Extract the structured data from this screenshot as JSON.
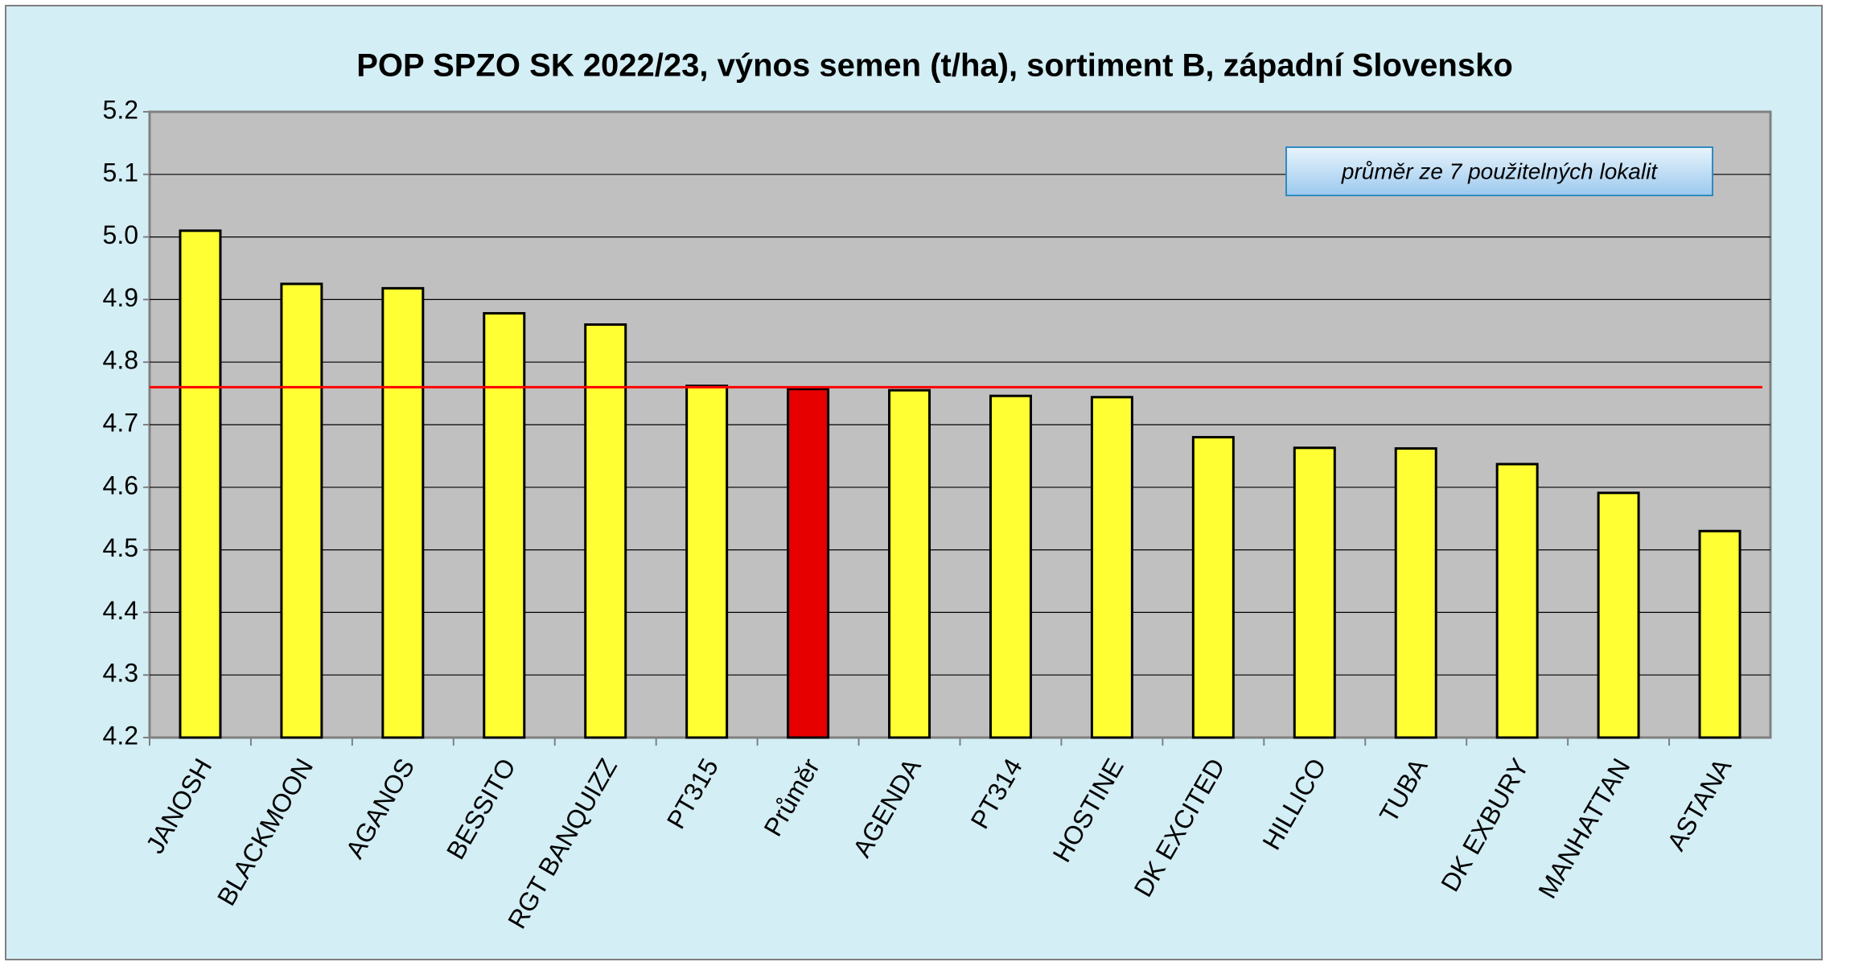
{
  "chart_data": {
    "type": "bar",
    "title": "POP SPZO SK 2022/23, výnos semen (t/ha), sortiment B, západní Slovensko",
    "annotation": "průměr ze 7 použitelných lokalit",
    "categories": [
      "JANOSH",
      "BLACKMOON",
      "AGANOS",
      "BESSITO",
      "RGT BANQUIZZ",
      "PT315",
      "Průměr",
      "AGENDA",
      "PT314",
      "HOSTINE",
      "DK EXCITED",
      "HILLICO",
      "TUBA",
      "DK EXBURY",
      "MANHATTAN",
      "ASTANA"
    ],
    "values": [
      5.01,
      4.925,
      4.918,
      4.878,
      4.86,
      4.762,
      4.757,
      4.755,
      4.746,
      4.744,
      4.68,
      4.663,
      4.662,
      4.637,
      4.591,
      4.53
    ],
    "colors": [
      "#ffff33",
      "#ffff33",
      "#ffff33",
      "#ffff33",
      "#ffff33",
      "#ffff33",
      "#e60000",
      "#ffff33",
      "#ffff33",
      "#ffff33",
      "#ffff33",
      "#ffff33",
      "#ffff33",
      "#ffff33",
      "#ffff33",
      "#ffff33"
    ],
    "average_line": 4.76,
    "average_line_color": "#ff0000",
    "ylim": [
      4.2,
      5.2
    ],
    "yticks": [
      4.2,
      4.3,
      4.4,
      4.5,
      4.6,
      4.7,
      4.8,
      4.9,
      {
        "value": 5.0,
        "label": "5.0"
      },
      5.1,
      5.2
    ],
    "grid": true
  }
}
